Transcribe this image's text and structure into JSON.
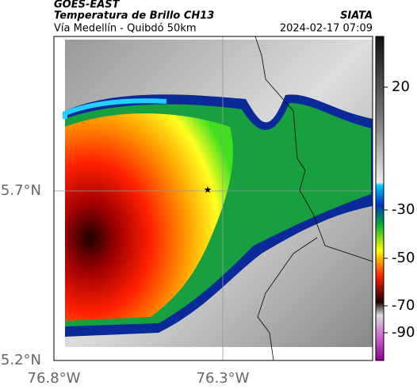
{
  "header": {
    "source": "GOES-EAST",
    "title": "Temperatura de Brillo CH13",
    "subtitle": "Vía Medellín - Quibdó 50km",
    "brand": "SIATA",
    "timestamp": "2024-02-17 07:09"
  },
  "map": {
    "lat_ticks": [
      "5.7°N",
      "5.2°N"
    ],
    "lon_ticks": [
      "76.8°W",
      "76.3°W"
    ]
  },
  "colorbar": {
    "ticks": [
      "20",
      "-30",
      "-50",
      "-70",
      "-90"
    ]
  }
}
